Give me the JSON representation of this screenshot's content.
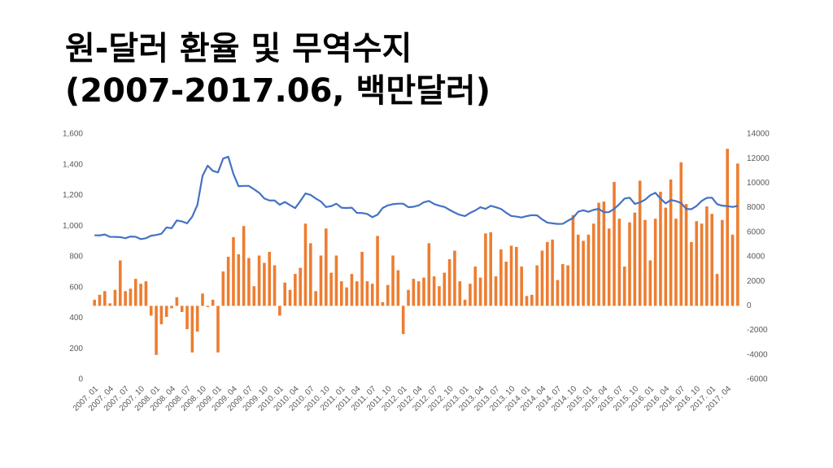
{
  "chart_data": {
    "type": "bar-line",
    "title": "원-달러 환율 및 무역수지",
    "subtitle": "(2007-2017.06, 백만달러)",
    "categories": [
      "2007. 01",
      null,
      null,
      "2007. 04",
      null,
      null,
      "2007. 07",
      null,
      null,
      "2007. 10",
      null,
      null,
      "2008. 01",
      null,
      null,
      "2008. 04",
      null,
      null,
      "2008. 07",
      null,
      null,
      "2008. 10",
      null,
      null,
      "2009. 01",
      null,
      null,
      "2009. 04",
      null,
      null,
      "2009. 07",
      null,
      null,
      "2009. 10",
      null,
      null,
      "2010. 01",
      null,
      null,
      "2010. 04",
      null,
      null,
      "2010. 07",
      null,
      null,
      "2010. 10",
      null,
      null,
      "2011. 01",
      null,
      null,
      "2011. 04",
      null,
      null,
      "2011. 07",
      null,
      null,
      "2011. 10",
      null,
      null,
      "2012. 01",
      null,
      null,
      "2012. 04",
      null,
      null,
      "2012. 07",
      null,
      null,
      "2012. 10",
      null,
      null,
      "2013. 01",
      null,
      null,
      "2013. 04",
      null,
      null,
      "2013. 07",
      null,
      null,
      "2013. 10",
      null,
      null,
      "2014. 01",
      null,
      null,
      "2014. 04",
      null,
      null,
      "2014. 07",
      null,
      null,
      "2014. 10",
      null,
      null,
      "2015. 01",
      null,
      null,
      "2015. 04",
      null,
      null,
      "2015. 07",
      null,
      null,
      "2015. 10",
      null,
      null,
      "2016. 01",
      null,
      null,
      "2016. 04",
      null,
      null,
      "2016. 07",
      null,
      null,
      "2016. 10",
      null,
      null,
      "2017. 01",
      null,
      null,
      "2017. 04",
      null,
      null
    ],
    "series": [
      {
        "type": "bar",
        "axis": "y2",
        "color": "#ed7d31",
        "values": [
          500,
          900,
          1200,
          200,
          1300,
          3700,
          1200,
          1400,
          2200,
          1800,
          2000,
          -800,
          -4000,
          -1500,
          -900,
          -200,
          700,
          -500,
          -1900,
          -3800,
          -2100,
          1000,
          -100,
          500,
          -3800,
          2800,
          4000,
          5600,
          4200,
          6500,
          3900,
          1600,
          4100,
          3500,
          4400,
          3300,
          -800,
          1900,
          1300,
          2600,
          3100,
          6700,
          5100,
          1200,
          4100,
          6300,
          2700,
          4100,
          2000,
          1500,
          2600,
          2000,
          4400,
          2000,
          1800,
          5700,
          300,
          1700,
          4100,
          2900,
          -2300,
          1300,
          2200,
          2000,
          2300,
          5100,
          2400,
          1600,
          2700,
          3800,
          4500,
          2000,
          500,
          1800,
          3200,
          2300,
          5900,
          6000,
          2400,
          4600,
          3600,
          4900,
          4800,
          3200,
          800,
          900,
          3300,
          4500,
          5200,
          5400,
          2100,
          3400,
          3300,
          7400,
          5800,
          5300,
          5800,
          6700,
          8400,
          8500,
          6300,
          10100,
          7100,
          3200,
          6800,
          7600,
          10200,
          7000,
          3700,
          7100,
          9300,
          8000,
          10300,
          7100,
          11700,
          8300,
          5200,
          6900,
          6700,
          8100,
          7500,
          2600,
          7000,
          12800,
          5800,
          11600
        ]
      },
      {
        "type": "line",
        "color": "#4472c4",
        "values": [
          940,
          939,
          945,
          930,
          929,
          928,
          921,
          932,
          930,
          915,
          921,
          937,
          942,
          950,
          991,
          986,
          1037,
          1030,
          1018,
          1062,
          1138,
          1328,
          1394,
          1360,
          1350,
          1440,
          1452,
          1340,
          1260,
          1262,
          1262,
          1240,
          1217,
          1180,
          1167,
          1167,
          1139,
          1157,
          1137,
          1117,
          1163,
          1213,
          1203,
          1180,
          1160,
          1124,
          1130,
          1146,
          1120,
          1118,
          1120,
          1086,
          1085,
          1079,
          1058,
          1074,
          1118,
          1135,
          1143,
          1146,
          1146,
          1123,
          1126,
          1135,
          1155,
          1164,
          1144,
          1133,
          1125,
          1106,
          1088,
          1073,
          1065,
          1086,
          1102,
          1123,
          1112,
          1132,
          1123,
          1112,
          1087,
          1066,
          1062,
          1056,
          1065,
          1071,
          1070,
          1044,
          1023,
          1018,
          1014,
          1015,
          1035,
          1053,
          1094,
          1103,
          1093,
          1106,
          1112,
          1090,
          1091,
          1112,
          1143,
          1179,
          1185,
          1145,
          1154,
          1172,
          1201,
          1217,
          1179,
          1148,
          1170,
          1163,
          1150,
          1112,
          1110,
          1131,
          1164,
          1184,
          1185,
          1143,
          1133,
          1130,
          1125,
          1131
        ]
      }
    ],
    "ylim": [
      0,
      1600
    ],
    "yticks": [
      0,
      200,
      400,
      600,
      800,
      {
        "value": 1000,
        "label": "1,000"
      },
      {
        "value": 1200,
        "label": "1,200"
      },
      {
        "value": 1400,
        "label": "1,400"
      },
      {
        "value": 1600,
        "label": "1,600"
      }
    ],
    "y2lim": [
      -6000,
      14000
    ],
    "y2ticks": [
      -6000,
      -4000,
      -2000,
      0,
      2000,
      4000,
      6000,
      8000,
      10000,
      12000,
      14000
    ]
  }
}
